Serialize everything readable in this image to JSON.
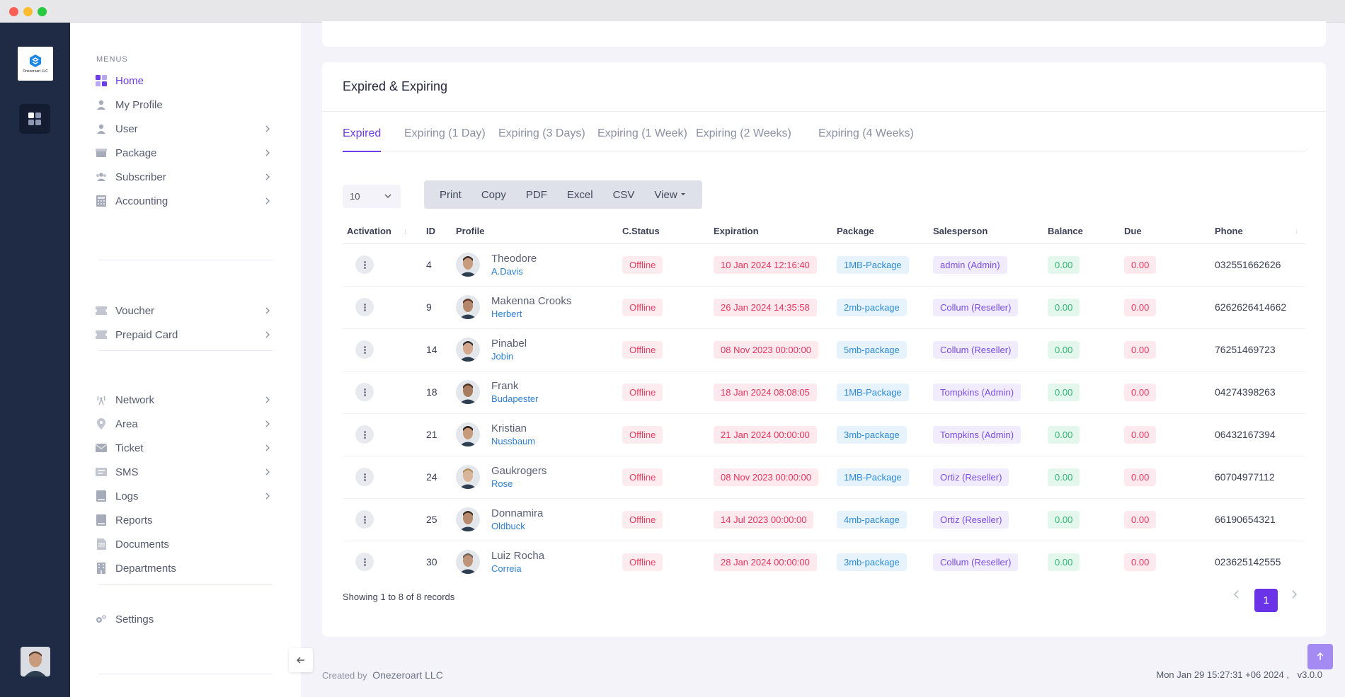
{
  "menu": {
    "title": "MENUS",
    "items": [
      {
        "label": "Home"
      },
      {
        "label": "My Profile"
      },
      {
        "label": "User"
      },
      {
        "label": "Package"
      },
      {
        "label": "Subscriber"
      },
      {
        "label": "Accounting"
      },
      {
        "label": "Voucher"
      },
      {
        "label": "Prepaid Card"
      },
      {
        "label": "Network"
      },
      {
        "label": "Area"
      },
      {
        "label": "Ticket"
      },
      {
        "label": "SMS"
      },
      {
        "label": "Logs"
      },
      {
        "label": "Reports"
      },
      {
        "label": "Documents"
      },
      {
        "label": "Departments"
      },
      {
        "label": "Settings"
      }
    ]
  },
  "logo": {
    "text": "Onezeroart LLC"
  },
  "card": {
    "title": "Expired & Expiring"
  },
  "tabs": [
    {
      "label": "Expired"
    },
    {
      "label": "Expiring (1 Day)"
    },
    {
      "label": "Expiring (3 Days)"
    },
    {
      "label": "Expiring (1 Week)"
    },
    {
      "label": "Expiring (2 Weeks)"
    },
    {
      "label": "Expiring (4 Weeks)"
    }
  ],
  "toolbar": {
    "page_length": "10",
    "buttons": [
      "Print",
      "Copy",
      "PDF",
      "Excel",
      "CSV",
      "View"
    ]
  },
  "table": {
    "headers": [
      "Activation",
      "ID",
      "Profile",
      "C.Status",
      "Expiration",
      "Package",
      "Salesperson",
      "Balance",
      "Due",
      "Phone"
    ],
    "rows": [
      {
        "id": "4",
        "name": "Theodore",
        "username": "A.Davis",
        "status": "Offline",
        "expiration": "10 Jan 2024 12:16:40",
        "package": "1MB-Package",
        "salesperson": "admin (Admin)",
        "balance": "0.00",
        "due": "0.00",
        "phone": "032551662626"
      },
      {
        "id": "9",
        "name": "Makenna Crooks",
        "username": "Herbert",
        "status": "Offline",
        "expiration": "26 Jan 2024 14:35:58",
        "package": "2mb-package",
        "salesperson": "Collum (Reseller)",
        "balance": "0.00",
        "due": "0.00",
        "phone": "6262626414662"
      },
      {
        "id": "14",
        "name": "Pinabel",
        "username": "Jobin",
        "status": "Offline",
        "expiration": "08 Nov 2023 00:00:00",
        "package": "5mb-package",
        "salesperson": "Collum (Reseller)",
        "balance": "0.00",
        "due": "0.00",
        "phone": "76251469723"
      },
      {
        "id": "18",
        "name": "Frank",
        "username": "Budapester",
        "status": "Offline",
        "expiration": "18 Jan 2024 08:08:05",
        "package": "1MB-Package",
        "salesperson": "Tompkins (Admin)",
        "balance": "0.00",
        "due": "0.00",
        "phone": "04274398263"
      },
      {
        "id": "21",
        "name": "Kristian",
        "username": "Nussbaum",
        "status": "Offline",
        "expiration": "21 Jan 2024 00:00:00",
        "package": "3mb-package",
        "salesperson": "Tompkins (Admin)",
        "balance": "0.00",
        "due": "0.00",
        "phone": "06432167394"
      },
      {
        "id": "24",
        "name": "Gaukrogers",
        "username": "Rose",
        "status": "Offline",
        "expiration": "08 Nov 2023 00:00:00",
        "package": "1MB-Package",
        "salesperson": "Ortiz (Reseller)",
        "balance": "0.00",
        "due": "0.00",
        "phone": "60704977112"
      },
      {
        "id": "25",
        "name": "Donnamira",
        "username": "Oldbuck",
        "status": "Offline",
        "expiration": "14 Jul 2023 00:00:00",
        "package": "4mb-package",
        "salesperson": "Ortiz (Reseller)",
        "balance": "0.00",
        "due": "0.00",
        "phone": "66190654321"
      },
      {
        "id": "30",
        "name": "Luiz Rocha",
        "username": "Correia",
        "status": "Offline",
        "expiration": "28 Jan 2024 00:00:00",
        "package": "3mb-package",
        "salesperson": "Collum (Reseller)",
        "balance": "0.00",
        "due": "0.00",
        "phone": "023625142555"
      }
    ]
  },
  "pagination": {
    "showing": "Showing 1 to 8 of 8 records",
    "current_page": "1"
  },
  "footer": {
    "created_by": "Created by",
    "company": "Onezeroart LLC",
    "datetime": "Mon Jan 29 15:27:31 +06 2024 ,",
    "version": "v3.0.0"
  },
  "colors": {
    "accent": "#6c3ee8",
    "sidebar_dark": "#1f2a44",
    "status_offline": "#ec3f63",
    "package": "#2f8bd6",
    "salesperson": "#7a4de3",
    "balance": "#2fba70"
  }
}
